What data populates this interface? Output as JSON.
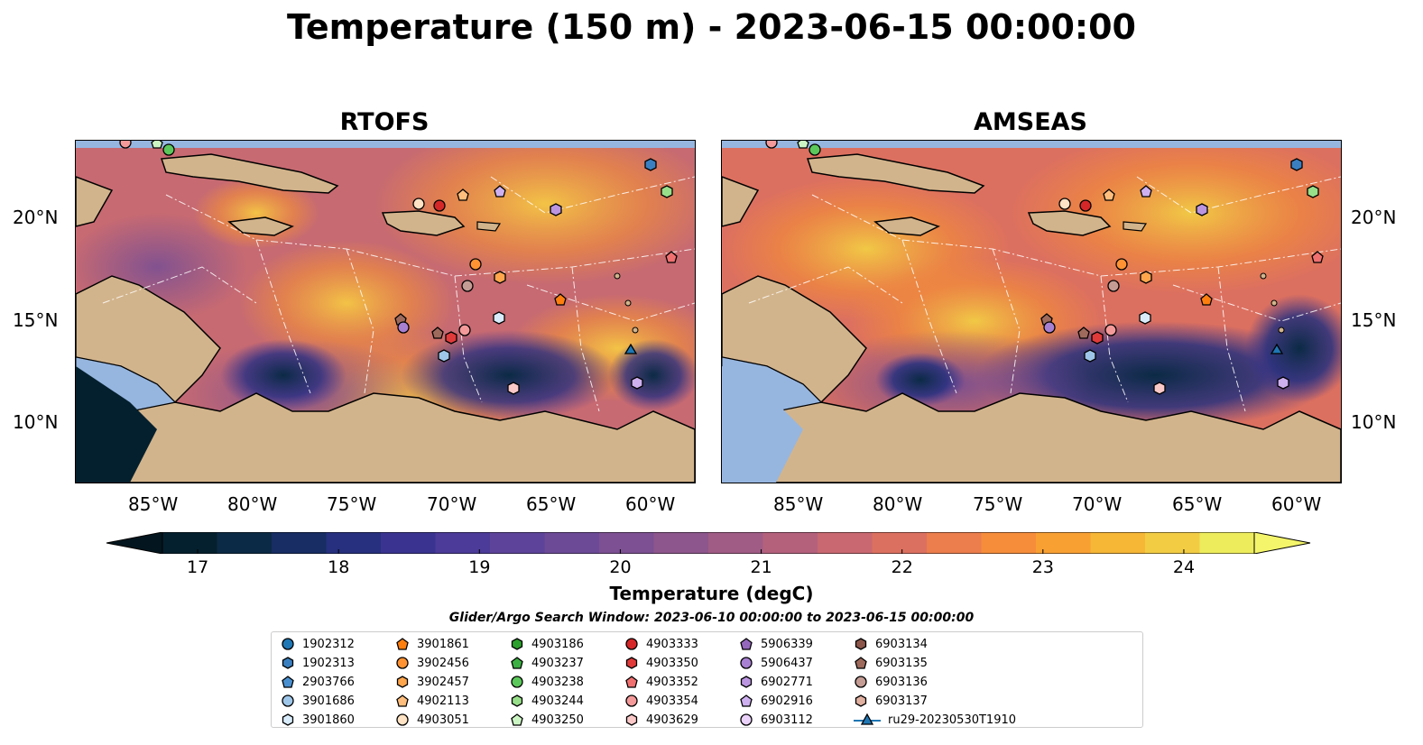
{
  "title": "Temperature (150 m) - 2023-06-15 00:00:00",
  "panels": [
    {
      "title": "RTOFS"
    },
    {
      "title": "AMSEAS"
    }
  ],
  "lat_ticks": [
    "20°N",
    "15°N",
    "10°N"
  ],
  "lon_ticks": [
    "85°W",
    "80°W",
    "75°W",
    "70°W",
    "65°W",
    "60°W"
  ],
  "colorbar": {
    "label": "Temperature (degC)",
    "ticks": [
      "17",
      "18",
      "19",
      "20",
      "21",
      "22",
      "23",
      "24"
    ],
    "range": [
      16.75,
      24.5
    ],
    "colors": [
      "#04202e",
      "#0b2a45",
      "#172d63",
      "#26307e",
      "#3a3490",
      "#4c3b98",
      "#5d4399",
      "#6c4a96",
      "#7c5092",
      "#8d568c",
      "#a05c85",
      "#b4617c",
      "#c96870",
      "#dc7060",
      "#ec7d4c",
      "#f68d3b",
      "#f9a033",
      "#f6b636",
      "#f2cd44",
      "#edec5c"
    ]
  },
  "window_text": "Glider/Argo Search Window: 2023-06-10 00:00:00 to 2023-06-15 00:00:00",
  "legend": [
    {
      "label": "1902312",
      "marker": "circle",
      "color": "#1f77b4"
    },
    {
      "label": "1902313",
      "marker": "hexagon",
      "color": "#3a80c0"
    },
    {
      "label": "2903766",
      "marker": "pentagon",
      "color": "#4a90d0"
    },
    {
      "label": "3901686",
      "marker": "circle",
      "color": "#9ec6e8"
    },
    {
      "label": "3901860",
      "marker": "hexagon",
      "color": "#d8ecfb"
    },
    {
      "label": "3901861",
      "marker": "pentagon",
      "color": "#ff7f0e"
    },
    {
      "label": "3902456",
      "marker": "circle",
      "color": "#ff9333"
    },
    {
      "label": "3902457",
      "marker": "hexagon",
      "color": "#ffa64d"
    },
    {
      "label": "4902113",
      "marker": "pentagon",
      "color": "#ffbe7d"
    },
    {
      "label": "4903051",
      "marker": "circle",
      "color": "#ffe3c4"
    },
    {
      "label": "4903186",
      "marker": "hexagon",
      "color": "#2ca02c"
    },
    {
      "label": "4903237",
      "marker": "pentagon",
      "color": "#3cb043"
    },
    {
      "label": "4903238",
      "marker": "circle",
      "color": "#5bc85b"
    },
    {
      "label": "4903244",
      "marker": "hexagon",
      "color": "#98df8a"
    },
    {
      "label": "4903250",
      "marker": "pentagon",
      "color": "#ccf5c4"
    },
    {
      "label": "4903333",
      "marker": "circle",
      "color": "#d62728"
    },
    {
      "label": "4903350",
      "marker": "hexagon",
      "color": "#e03a3a"
    },
    {
      "label": "4903352",
      "marker": "pentagon",
      "color": "#f07070"
    },
    {
      "label": "4903354",
      "marker": "circle",
      "color": "#f49a9a"
    },
    {
      "label": "4903629",
      "marker": "hexagon",
      "color": "#fbc8c8"
    },
    {
      "label": "5906339",
      "marker": "pentagon",
      "color": "#9467bd"
    },
    {
      "label": "5906437",
      "marker": "circle",
      "color": "#a880d2"
    },
    {
      "label": "6902771",
      "marker": "hexagon",
      "color": "#bb95e0"
    },
    {
      "label": "6902916",
      "marker": "pentagon",
      "color": "#ceb0f0"
    },
    {
      "label": "6903112",
      "marker": "circle",
      "color": "#ead2fb"
    },
    {
      "label": "6903134",
      "marker": "hexagon",
      "color": "#8c564b"
    },
    {
      "label": "6903135",
      "marker": "pentagon",
      "color": "#9e6a5c"
    },
    {
      "label": "6903136",
      "marker": "circle",
      "color": "#c49c94"
    },
    {
      "label": "6903137",
      "marker": "hexagon",
      "color": "#e0b0a0"
    },
    {
      "label": "ru29-20230530T1910",
      "marker": "triangle-line",
      "color": "#1f77b4"
    }
  ]
}
